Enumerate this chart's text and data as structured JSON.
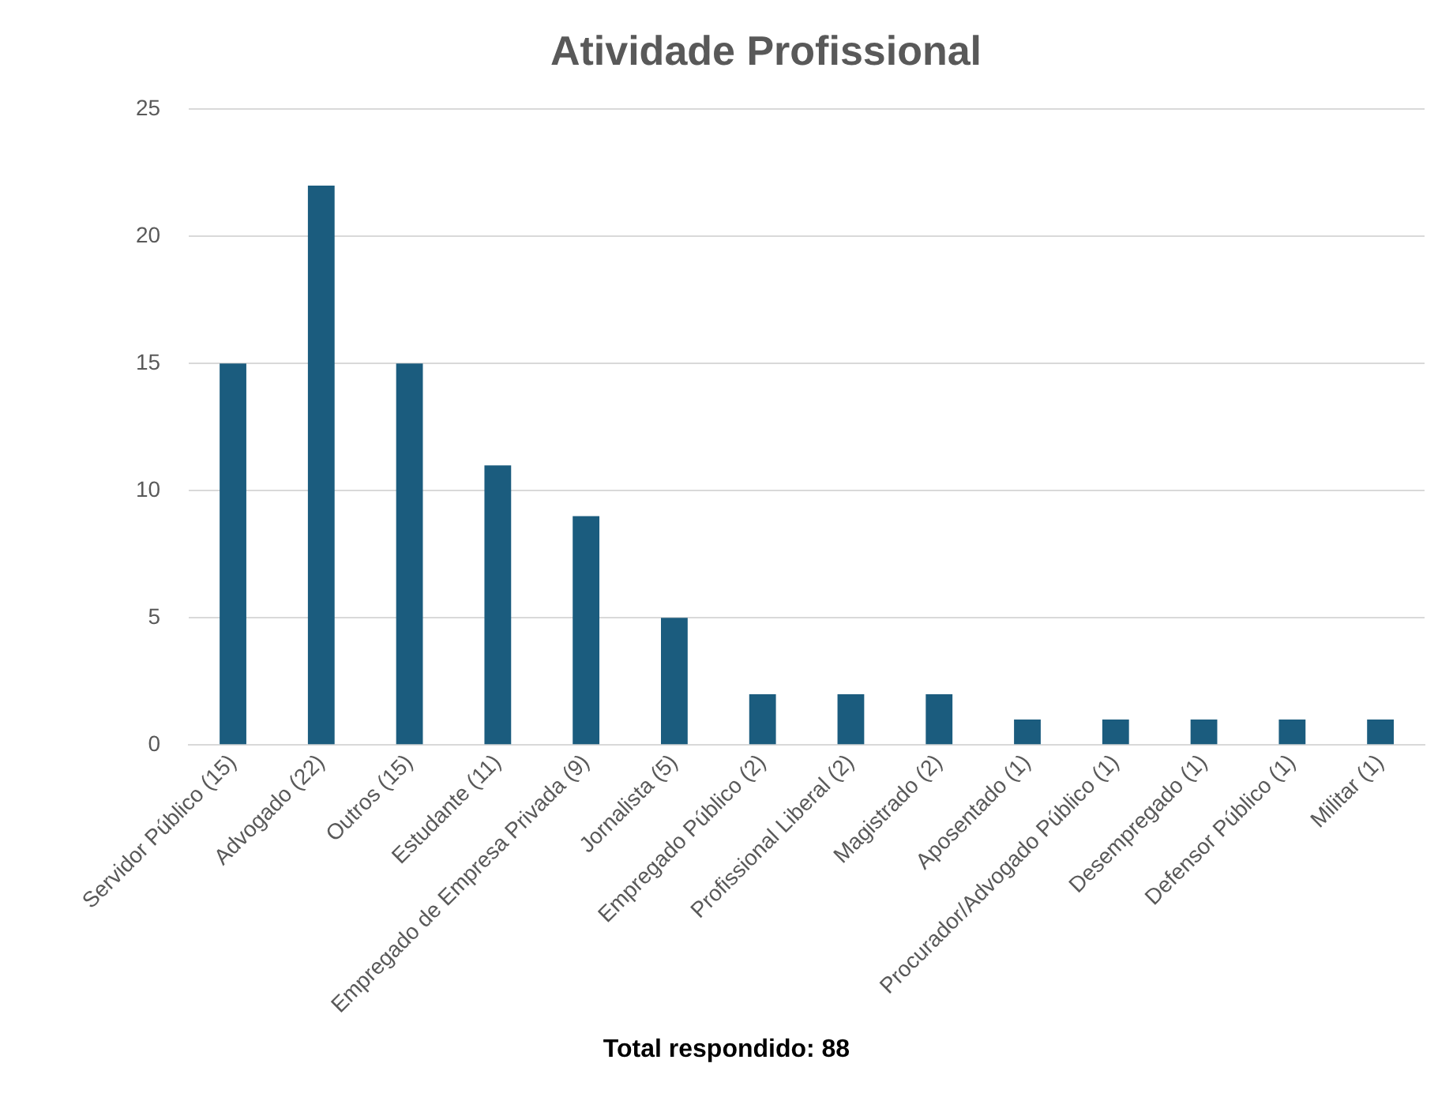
{
  "chart_data": {
    "type": "bar",
    "title": "Atividade Profissional",
    "categories": [
      "Servidor Público (15)",
      "Advogado (22)",
      "Outros (15)",
      "Estudante (11)",
      "Empregado de Empresa Privada (9)",
      "Jornalista (5)",
      "Empregado Público (2)",
      "Profissional Liberal (2)",
      "Magistrado (2)",
      "Aposentado (1)",
      "Procurador/Advogado Público (1)",
      "Desempregado (1)",
      "Defensor Público (1)",
      "Militar (1)"
    ],
    "values": [
      15,
      22,
      15,
      11,
      9,
      5,
      2,
      2,
      2,
      1,
      1,
      1,
      1,
      1
    ],
    "color": "#1b5c7e",
    "ylim": [
      0,
      25
    ],
    "yticks": [
      0,
      5,
      10,
      15,
      20,
      25
    ],
    "grid": "y",
    "legend": false,
    "annotations": [
      "Total respondido: 88"
    ]
  }
}
